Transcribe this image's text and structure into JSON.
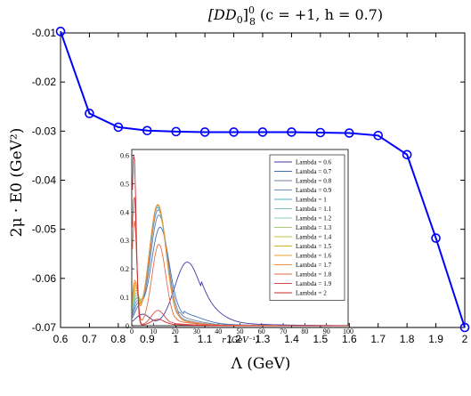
{
  "chart_data": [
    {
      "type": "line",
      "title": "[DD0]^0_8 (c = +1, h = 0.7)",
      "title_parts": {
        "base": "[DD",
        "sub0": "0",
        "bracket": "]",
        "sup": "0",
        "sub": "8",
        "rest": " (c = +1, h = 0.7)"
      },
      "xlabel": "Λ (GeV)",
      "ylabel": "2μ · E0 (GeV²)",
      "xlim": [
        0.6,
        2.0
      ],
      "ylim": [
        -0.07,
        -0.01
      ],
      "xticks": [
        "0.6",
        "0.7",
        "0.8",
        "0.9",
        "1",
        "1.1",
        "1.2",
        "1.3",
        "1.4",
        "1.5",
        "1.6",
        "1.7",
        "1.8",
        "1.9",
        "2"
      ],
      "yticks": [
        "-0.01",
        "-0.02",
        "-0.03",
        "-0.04",
        "-0.05",
        "-0.06",
        "-0.07"
      ],
      "grid": false,
      "series": [
        {
          "color": "#0000ff",
          "marker": "open-circle",
          "x": [
            0.6,
            0.7,
            0.8,
            0.9,
            1.0,
            1.1,
            1.2,
            1.3,
            1.4,
            1.5,
            1.6,
            1.7,
            1.8,
            1.9,
            2.0
          ],
          "y": [
            -0.0097,
            -0.0264,
            -0.0292,
            -0.0299,
            -0.0301,
            -0.0302,
            -0.0302,
            -0.0302,
            -0.0302,
            -0.0303,
            -0.0304,
            -0.0309,
            -0.0348,
            -0.0518,
            -0.07
          ]
        }
      ]
    },
    {
      "type": "line",
      "title": "",
      "xlabel": "r (GeV⁻¹)",
      "ylabel": "",
      "xlim": [
        0,
        100
      ],
      "ylim": [
        0,
        0.62
      ],
      "xticks": [
        "0",
        "10",
        "20",
        "30",
        "40",
        "50",
        "60",
        "70",
        "80",
        "90",
        "100"
      ],
      "yticks": [
        "0",
        "0.1",
        "0.2",
        "0.3",
        "0.4",
        "0.5",
        "0.6"
      ],
      "grid": false,
      "legend_position": "top-right",
      "series": [
        {
          "name": "Lambda = 0.6",
          "color": "#3b3ba8",
          "peak_r": 25,
          "peak": 0.185,
          "width": 5.5,
          "near_peak": 0.04,
          "near_r": 5,
          "tail": 0.055,
          "tail_r": 32
        },
        {
          "name": "Lambda = 0.7",
          "color": "#3f6fb5",
          "peak_r": 13,
          "peak": 0.335,
          "width": 4.2,
          "near_peak": 0.05,
          "near_r": 3,
          "tail": 0.03,
          "tail_r": 24
        },
        {
          "name": "Lambda = 0.8",
          "color": "#6b7fa0",
          "peak_r": 12.5,
          "peak": 0.38,
          "width": 4.0,
          "near_peak": 0.06,
          "near_r": 2.5,
          "tail": 0.02,
          "tail_r": 22
        },
        {
          "name": "Lambda = 0.9",
          "color": "#6a8fc0",
          "peak_r": 12.2,
          "peak": 0.4,
          "width": 3.9,
          "near_peak": 0.07,
          "near_r": 2.2,
          "tail": 0.015,
          "tail_r": 21
        },
        {
          "name": "Lambda = 1",
          "color": "#4fb3c9",
          "peak_r": 12,
          "peak": 0.41,
          "width": 3.9,
          "near_peak": 0.08,
          "near_r": 2.0,
          "tail": 0.012,
          "tail_r": 21
        },
        {
          "name": "Lambda = 1.1",
          "color": "#7fc7c7",
          "peak_r": 12,
          "peak": 0.415,
          "width": 3.9,
          "near_peak": 0.09,
          "near_r": 2.0,
          "tail": 0.012,
          "tail_r": 21
        },
        {
          "name": "Lambda = 1.2",
          "color": "#8ccfb0",
          "peak_r": 12,
          "peak": 0.418,
          "width": 3.9,
          "near_peak": 0.1,
          "near_r": 1.9,
          "tail": 0.012,
          "tail_r": 21
        },
        {
          "name": "Lambda = 1.3",
          "color": "#a9c97a",
          "peak_r": 12,
          "peak": 0.42,
          "width": 3.9,
          "near_peak": 0.11,
          "near_r": 1.8,
          "tail": 0.012,
          "tail_r": 21
        },
        {
          "name": "Lambda = 1.4",
          "color": "#c6c33f",
          "peak_r": 12,
          "peak": 0.42,
          "width": 3.9,
          "near_peak": 0.12,
          "near_r": 1.7,
          "tail": 0.012,
          "tail_r": 21
        },
        {
          "name": "Lambda = 1.5",
          "color": "#d9b230",
          "peak_r": 12,
          "peak": 0.42,
          "width": 3.9,
          "near_peak": 0.13,
          "near_r": 1.6,
          "tail": 0.012,
          "tail_r": 21
        },
        {
          "name": "Lambda = 1.6",
          "color": "#e8a030",
          "peak_r": 12,
          "peak": 0.42,
          "width": 3.9,
          "near_peak": 0.14,
          "near_r": 1.5,
          "tail": 0.012,
          "tail_r": 21
        },
        {
          "name": "Lambda = 1.7",
          "color": "#f08c3a",
          "peak_r": 12,
          "peak": 0.42,
          "width": 3.9,
          "near_peak": 0.15,
          "near_r": 1.4,
          "tail": 0.012,
          "tail_r": 21
        },
        {
          "name": "Lambda = 1.8",
          "color": "#e86a40",
          "peak_r": 12.5,
          "peak": 0.28,
          "width": 3.2,
          "near_peak": 0.37,
          "near_r": 1.2,
          "tail": 0.01,
          "tail_r": 20
        },
        {
          "name": "Lambda = 1.9",
          "color": "#d94a4a",
          "peak_r": 12,
          "peak": 0.05,
          "width": 3.0,
          "near_peak": 0.46,
          "near_r": 1.1,
          "tail": 0.005,
          "tail_r": 18
        },
        {
          "name": "Lambda = 2",
          "color": "#cc2b2b",
          "peak_r": 12,
          "peak": 0.02,
          "width": 3.0,
          "near_peak": 0.61,
          "near_r": 1.0,
          "tail": 0.003,
          "tail_r": 16
        }
      ]
    }
  ]
}
